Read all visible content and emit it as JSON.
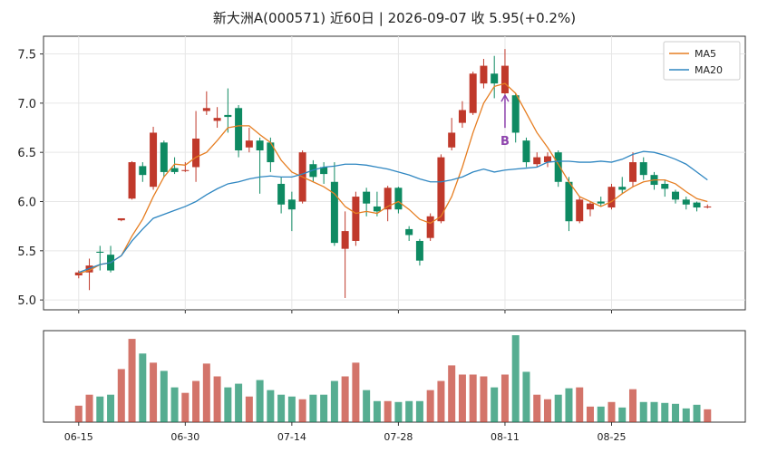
{
  "chart_data": {
    "type": "candlestick",
    "title": "新大洲A(000571) 近60日  |  2026-09-07 收 5.95(+0.2%)",
    "categories": [
      "06-15",
      null,
      null,
      null,
      null,
      null,
      null,
      null,
      null,
      null,
      "06-30",
      null,
      null,
      null,
      null,
      null,
      null,
      null,
      null,
      null,
      "07-14",
      null,
      null,
      null,
      null,
      null,
      null,
      null,
      null,
      null,
      "07-28",
      null,
      null,
      null,
      null,
      null,
      null,
      null,
      null,
      null,
      "08-11",
      null,
      null,
      null,
      null,
      null,
      null,
      null,
      null,
      null,
      "08-25",
      null,
      null,
      null,
      null,
      null,
      null,
      null,
      null,
      null
    ],
    "open": [
      5.25,
      5.28,
      5.49,
      5.46,
      5.81,
      6.03,
      6.36,
      6.15,
      6.6,
      6.34,
      6.31,
      6.35,
      6.92,
      6.82,
      6.88,
      6.95,
      6.55,
      6.62,
      6.6,
      6.18,
      6.02,
      6.0,
      6.38,
      6.35,
      6.2,
      5.52,
      5.6,
      6.1,
      5.95,
      5.92,
      6.14,
      5.72,
      5.6,
      5.63,
      5.8,
      6.55,
      6.8,
      6.9,
      7.2,
      7.3,
      7.1,
      7.08,
      6.62,
      6.38,
      6.4,
      6.5,
      6.2,
      5.8,
      5.92,
      6.0,
      5.94,
      6.15,
      6.2,
      6.4,
      6.27,
      6.18,
      6.1,
      6.02,
      5.99,
      5.94
    ],
    "high": [
      5.3,
      5.42,
      5.55,
      5.55,
      5.83,
      6.41,
      6.4,
      6.76,
      6.62,
      6.45,
      6.4,
      6.92,
      7.12,
      6.96,
      7.15,
      6.98,
      6.75,
      6.65,
      6.65,
      6.25,
      6.1,
      6.52,
      6.42,
      6.4,
      6.4,
      5.9,
      6.1,
      6.14,
      6.1,
      6.16,
      6.15,
      5.75,
      5.62,
      5.88,
      6.48,
      6.85,
      7.02,
      7.32,
      7.45,
      7.48,
      7.55,
      7.1,
      6.65,
      6.5,
      6.5,
      6.52,
      6.25,
      6.05,
      6.0,
      6.05,
      6.18,
      6.25,
      6.5,
      6.45,
      6.3,
      6.22,
      6.12,
      6.05,
      6.0,
      5.97
    ],
    "low": [
      5.22,
      5.1,
      5.3,
      5.28,
      5.8,
      6.02,
      6.2,
      6.12,
      6.25,
      6.28,
      6.3,
      6.2,
      6.88,
      6.75,
      6.7,
      6.45,
      6.5,
      6.08,
      6.3,
      5.88,
      5.7,
      5.98,
      6.2,
      6.18,
      5.55,
      5.02,
      5.55,
      5.85,
      5.85,
      5.8,
      5.88,
      5.6,
      5.35,
      5.6,
      5.78,
      6.52,
      6.75,
      6.88,
      7.15,
      7.05,
      7.05,
      6.6,
      6.35,
      6.35,
      6.35,
      6.15,
      5.7,
      5.78,
      5.85,
      5.95,
      5.92,
      6.08,
      6.15,
      6.22,
      6.12,
      6.05,
      5.98,
      5.92,
      5.9,
      5.93
    ],
    "close": [
      5.28,
      5.35,
      5.48,
      5.3,
      5.83,
      6.4,
      6.27,
      6.7,
      6.3,
      6.3,
      6.32,
      6.64,
      6.95,
      6.85,
      6.86,
      6.52,
      6.62,
      6.52,
      6.4,
      5.97,
      5.92,
      6.5,
      6.25,
      6.28,
      5.58,
      5.7,
      6.05,
      5.98,
      5.9,
      6.14,
      5.92,
      5.66,
      5.4,
      5.85,
      6.45,
      6.7,
      6.93,
      7.3,
      7.38,
      7.2,
      7.38,
      6.7,
      6.4,
      6.45,
      6.46,
      6.2,
      5.8,
      6.02,
      5.98,
      5.98,
      6.15,
      6.12,
      6.4,
      6.27,
      6.17,
      6.13,
      6.02,
      5.97,
      5.94,
      5.95
    ],
    "up_color": "#c0392b",
    "down_color": "#0e8a62",
    "volume": [
      18,
      30,
      28,
      30,
      58,
      91,
      75,
      65,
      56,
      38,
      32,
      45,
      64,
      50,
      38,
      42,
      28,
      46,
      35,
      30,
      28,
      25,
      30,
      30,
      45,
      50,
      65,
      35,
      23,
      23,
      22,
      23,
      23,
      35,
      45,
      62,
      52,
      52,
      50,
      38,
      52,
      95,
      55,
      30,
      25,
      30,
      37,
      38,
      17,
      17,
      22,
      16,
      36,
      22,
      22,
      21,
      20,
      15,
      19,
      14
    ],
    "series": [
      {
        "name": "MA5",
        "color": "#e67e22",
        "values": [
          5.27,
          5.3,
          5.36,
          5.38,
          5.45,
          5.65,
          5.82,
          6.05,
          6.25,
          6.38,
          6.37,
          6.45,
          6.5,
          6.62,
          6.75,
          6.77,
          6.77,
          6.68,
          6.6,
          6.42,
          6.3,
          6.25,
          6.2,
          6.15,
          6.08,
          5.95,
          5.88,
          5.9,
          5.88,
          5.95,
          6.0,
          5.92,
          5.82,
          5.78,
          5.85,
          6.05,
          6.35,
          6.7,
          7.0,
          7.17,
          7.2,
          7.1,
          6.9,
          6.7,
          6.55,
          6.38,
          6.2,
          6.05,
          6.0,
          5.95,
          6.0,
          6.08,
          6.15,
          6.2,
          6.22,
          6.22,
          6.18,
          6.1,
          6.03,
          6.0
        ]
      },
      {
        "name": "MA20",
        "color": "#2e86c1",
        "values": [
          5.28,
          5.32,
          5.36,
          5.38,
          5.45,
          5.6,
          5.72,
          5.83,
          5.87,
          5.91,
          5.95,
          6.0,
          6.07,
          6.13,
          6.18,
          6.2,
          6.23,
          6.25,
          6.26,
          6.25,
          6.25,
          6.28,
          6.32,
          6.35,
          6.36,
          6.38,
          6.38,
          6.37,
          6.35,
          6.33,
          6.3,
          6.27,
          6.23,
          6.2,
          6.2,
          6.22,
          6.25,
          6.3,
          6.33,
          6.3,
          6.32,
          6.33,
          6.34,
          6.35,
          6.4,
          6.41,
          6.41,
          6.4,
          6.4,
          6.41,
          6.4,
          6.43,
          6.48,
          6.51,
          6.5,
          6.47,
          6.43,
          6.38,
          6.3,
          6.22
        ]
      }
    ],
    "annotations": [
      {
        "text": "B",
        "index": 40,
        "value": 6.62,
        "arrow_to": 7.08,
        "color": "#8e44ad"
      }
    ],
    "ylim": [
      4.9,
      7.68
    ],
    "yticks": [
      {
        "value": 5,
        "label": "5.0"
      },
      {
        "value": 5.5,
        "label": "5.5"
      },
      {
        "value": 6,
        "label": "6.0"
      },
      {
        "value": 6.5,
        "label": "6.5"
      },
      {
        "value": 7,
        "label": "7.0"
      },
      {
        "value": 7.5,
        "label": "7.5"
      }
    ],
    "xlim": [
      -3.3,
      62.55
    ],
    "volume_ylim": [
      0,
      100
    ],
    "grid": true,
    "legend": "upper right"
  }
}
